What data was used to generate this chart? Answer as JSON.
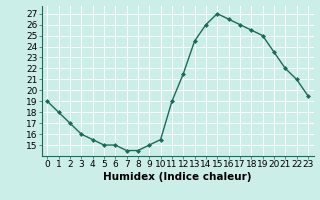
{
  "x": [
    0,
    1,
    2,
    3,
    4,
    5,
    6,
    7,
    8,
    9,
    10,
    11,
    12,
    13,
    14,
    15,
    16,
    17,
    18,
    19,
    20,
    21,
    22,
    23
  ],
  "y": [
    19,
    18,
    17,
    16,
    15.5,
    15,
    15,
    14.5,
    14.5,
    15,
    15.5,
    19,
    21.5,
    24.5,
    26,
    27,
    26.5,
    26,
    25.5,
    25,
    23.5,
    22,
    21,
    19.5
  ],
  "line_color": "#1a6b5a",
  "marker": "D",
  "marker_size": 2.0,
  "linewidth": 1.0,
  "xlabel": "Humidex (Indice chaleur)",
  "xlim": [
    -0.5,
    23.5
  ],
  "ylim": [
    14.0,
    27.7
  ],
  "yticks": [
    15,
    16,
    17,
    18,
    19,
    20,
    21,
    22,
    23,
    24,
    25,
    26,
    27
  ],
  "xticks": [
    0,
    1,
    2,
    3,
    4,
    5,
    6,
    7,
    8,
    9,
    10,
    11,
    12,
    13,
    14,
    15,
    16,
    17,
    18,
    19,
    20,
    21,
    22,
    23
  ],
  "background_color": "#cceee8",
  "grid_color": "#ffffff",
  "xlabel_fontsize": 7.5,
  "tick_fontsize": 6.5
}
